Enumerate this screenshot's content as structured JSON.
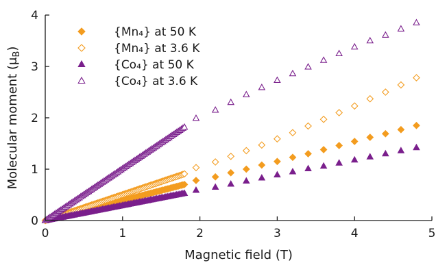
{
  "chart_data": {
    "type": "scatter",
    "title": "",
    "xlabel": "Magnetic field (T)",
    "ylabel": "Molecular moment (μB)",
    "ylabel_main": "Molecular moment (μ",
    "ylabel_sub": "B",
    "ylabel_end": ")",
    "xlim": [
      0,
      5
    ],
    "ylim": [
      0,
      4
    ],
    "xticks": [
      0,
      1,
      2,
      3,
      4,
      5
    ],
    "yticks": [
      0,
      1,
      2,
      3,
      4
    ],
    "xtick_labels": [
      "0",
      "1",
      "2",
      "3",
      "4",
      "5"
    ],
    "ytick_labels": [
      "0",
      "1",
      "2",
      "3",
      "4"
    ],
    "grid": false,
    "legend_position": "top-left",
    "low_field_range": [
      0,
      1.8
    ],
    "high_field_x": [
      1.95,
      2.2,
      2.4,
      2.6,
      2.8,
      3.0,
      3.2,
      3.4,
      3.6,
      3.8,
      4.0,
      4.2,
      4.4,
      4.6,
      4.8
    ],
    "series": [
      {
        "name": "{Mn₄} at 50 K",
        "marker": "diamond",
        "filled": true,
        "color": "#F39C1F",
        "slope_low_field": 0.39,
        "high_field_y": [
          0.78,
          0.85,
          0.93,
          1.0,
          1.08,
          1.15,
          1.23,
          1.3,
          1.38,
          1.46,
          1.54,
          1.62,
          1.69,
          1.77,
          1.85
        ]
      },
      {
        "name": "{Mn₄} at 3.6 K",
        "marker": "diamond",
        "filled": false,
        "color": "#F39C1F",
        "slope_low_field": 0.505,
        "high_field_y": [
          1.03,
          1.14,
          1.25,
          1.36,
          1.47,
          1.59,
          1.71,
          1.84,
          1.97,
          2.1,
          2.23,
          2.37,
          2.5,
          2.64,
          2.78
        ]
      },
      {
        "name": "{Co₄} at 50 K",
        "marker": "triangle",
        "filled": true,
        "color": "#7A1F8C",
        "slope_low_field": 0.295,
        "high_field_y": [
          0.59,
          0.65,
          0.71,
          0.77,
          0.83,
          0.89,
          0.95,
          1.01,
          1.06,
          1.12,
          1.18,
          1.24,
          1.3,
          1.36,
          1.42
        ]
      },
      {
        "name": "{Co₄} at 3.6 K",
        "marker": "triangle",
        "filled": false,
        "color": "#7A1F8C",
        "slope_low_field": 1.01,
        "high_field_y": [
          1.99,
          2.15,
          2.3,
          2.45,
          2.59,
          2.73,
          2.86,
          2.99,
          3.12,
          3.25,
          3.38,
          3.5,
          3.61,
          3.73,
          3.85
        ]
      }
    ]
  }
}
